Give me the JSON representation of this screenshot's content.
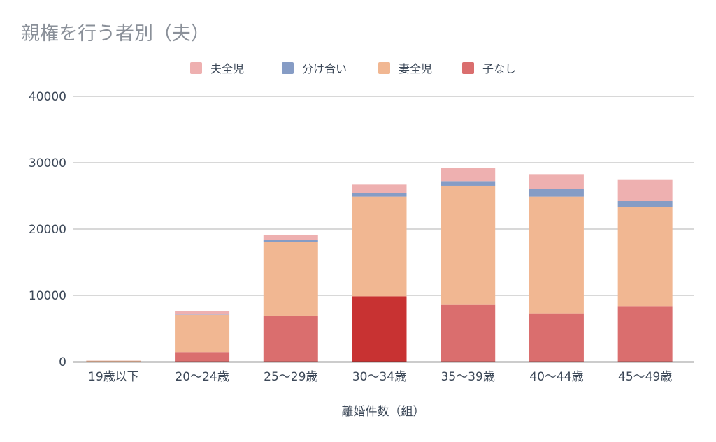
{
  "chart_data": {
    "type": "bar",
    "stacked": true,
    "title": "親権を行う者別（夫）",
    "xlabel": "離婚件数（組）",
    "ylabel": "",
    "ylim": [
      0,
      40000
    ],
    "yticks": [
      0,
      10000,
      20000,
      30000,
      40000
    ],
    "grid": true,
    "legend_position": "top-center",
    "categories": [
      "19歳以下",
      "20〜24歳",
      "25〜29歳",
      "30〜34歳",
      "35〜39歳",
      "40〜44歳",
      "45〜49歳"
    ],
    "series": [
      {
        "name": "子なし",
        "color": "#DA6E6E",
        "values": [
          20,
          1450,
          6950,
          9860,
          8560,
          7300,
          8390
        ]
      },
      {
        "name": "妻全児",
        "color": "#F1B792",
        "values": [
          120,
          5620,
          11080,
          15020,
          17970,
          17580,
          14910
        ]
      },
      {
        "name": "分け合い",
        "color": "#869CC5",
        "values": [
          5,
          50,
          390,
          590,
          700,
          1120,
          910
        ]
      },
      {
        "name": "夫全児",
        "color": "#EEB0B0",
        "values": [
          20,
          490,
          740,
          1230,
          2000,
          2280,
          3190
        ]
      }
    ],
    "legend_order": [
      "夫全児",
      "分け合い",
      "妻全児",
      "子なし"
    ],
    "highlight": {
      "category_index": 3,
      "series": "子なし",
      "color": "#C83232"
    }
  }
}
